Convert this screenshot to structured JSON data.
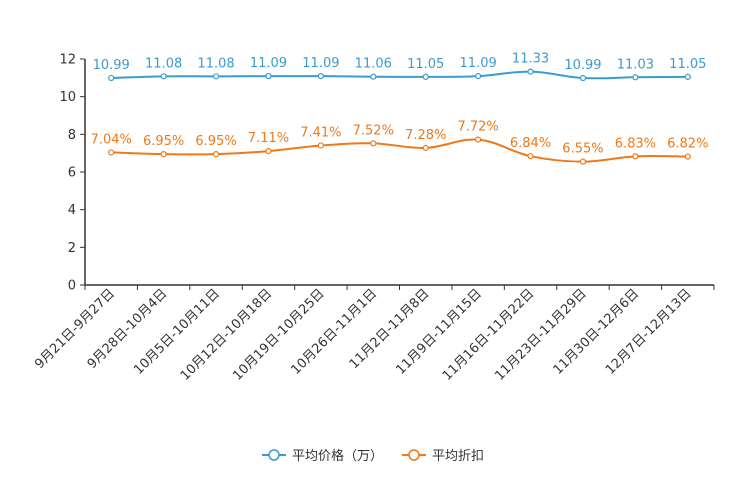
{
  "chart_data": {
    "type": "line",
    "title": "",
    "xlabel": "",
    "ylabel": "",
    "ylim": [
      0,
      12
    ],
    "yticks": [
      0,
      2,
      4,
      6,
      8,
      10,
      12
    ],
    "grid": false,
    "legend_position": "bottom-center",
    "categories": [
      "9月21日-9月27日",
      "9月28日-10月4日",
      "10月5日-10月11日",
      "10月12日-10月18日",
      "10月19日-10月25日",
      "10月26日-11月1日",
      "11月2日-11月8日",
      "11月9日-11月15日",
      "11月16日-11月22日",
      "11月23日-11月29日",
      "11月30日-12月6日",
      "12月7日-12月13日"
    ],
    "series": [
      {
        "name": "平均价格（万）",
        "color": "#3a9bd0",
        "values": [
          10.99,
          11.08,
          11.08,
          11.09,
          11.09,
          11.06,
          11.05,
          11.09,
          11.33,
          10.99,
          11.03,
          11.05
        ],
        "labels": [
          "10.99",
          "11.08",
          "11.08",
          "11.09",
          "11.09",
          "11.06",
          "11.05",
          "11.09",
          "11.33",
          "10.99",
          "11.03",
          "11.05"
        ]
      },
      {
        "name": "平均折扣",
        "color": "#f07818",
        "values": [
          7.04,
          6.95,
          6.95,
          7.11,
          7.41,
          7.52,
          7.28,
          7.72,
          6.84,
          6.55,
          6.83,
          6.82
        ],
        "labels": [
          "7.04%",
          "6.95%",
          "6.95%",
          "7.11%",
          "7.41%",
          "7.52%",
          "7.28%",
          "7.72%",
          "6.84%",
          "6.55%",
          "6.83%",
          "6.82%"
        ]
      }
    ]
  }
}
